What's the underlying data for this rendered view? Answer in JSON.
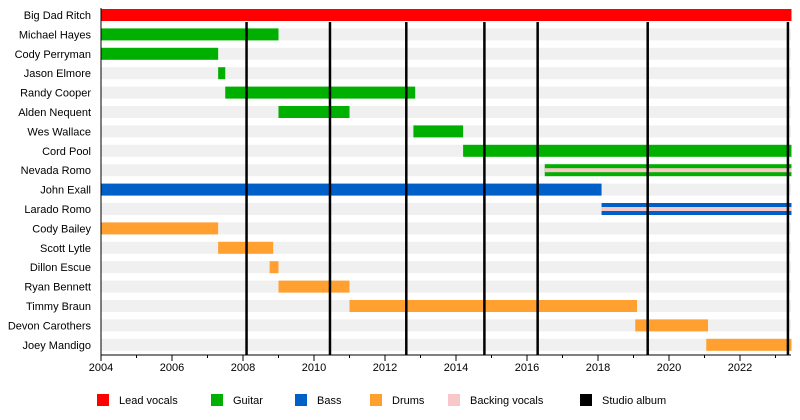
{
  "chart_data": {
    "type": "timeline",
    "title": "",
    "xlim": [
      2004,
      2023.45
    ],
    "x_ticks": [
      2004,
      2006,
      2008,
      2010,
      2012,
      2014,
      2016,
      2018,
      2020,
      2022
    ],
    "roles": [
      {
        "key": "lead",
        "label": "Lead vocals",
        "color": "#ff0000"
      },
      {
        "key": "guitar",
        "label": "Guitar",
        "color": "#00b000"
      },
      {
        "key": "bass",
        "label": "Bass",
        "color": "#0060c8"
      },
      {
        "key": "drums",
        "label": "Drums",
        "color": "#ffa030"
      },
      {
        "key": "backing",
        "label": "Backing vocals",
        "color": "#f8c8c8"
      },
      {
        "key": "album",
        "label": "Studio album",
        "color": "#000000"
      }
    ],
    "albums": [
      2008.1,
      2010.45,
      2012.6,
      2014.8,
      2016.3,
      2019.4,
      2023.35
    ],
    "members": [
      {
        "name": "Big Dad Ritch",
        "bars": [
          {
            "role": "lead",
            "start": 2004,
            "end": 2023.45
          }
        ]
      },
      {
        "name": "Michael Hayes",
        "bars": [
          {
            "role": "guitar",
            "start": 2004,
            "end": 2009.0
          }
        ]
      },
      {
        "name": "Cody Perryman",
        "bars": [
          {
            "role": "guitar",
            "start": 2004,
            "end": 2007.3
          }
        ]
      },
      {
        "name": "Jason Elmore",
        "bars": [
          {
            "role": "guitar",
            "start": 2007.3,
            "end": 2007.5
          }
        ]
      },
      {
        "name": "Randy Cooper",
        "bars": [
          {
            "role": "guitar",
            "start": 2007.5,
            "end": 2012.85
          }
        ]
      },
      {
        "name": "Alden Nequent",
        "bars": [
          {
            "role": "guitar",
            "start": 2009.0,
            "end": 2011.0
          }
        ]
      },
      {
        "name": "Wes Wallace",
        "bars": [
          {
            "role": "guitar",
            "start": 2012.8,
            "end": 2014.2
          }
        ]
      },
      {
        "name": "Cord Pool",
        "bars": [
          {
            "role": "guitar",
            "start": 2014.2,
            "end": 2023.45
          }
        ]
      },
      {
        "name": "Nevada Romo",
        "bars": [
          {
            "role": "guitar",
            "start": 2016.5,
            "end": 2023.45,
            "secondary": "backing"
          }
        ]
      },
      {
        "name": "John Exall",
        "bars": [
          {
            "role": "bass",
            "start": 2004,
            "end": 2018.1
          }
        ]
      },
      {
        "name": "Larado Romo",
        "bars": [
          {
            "role": "bass",
            "start": 2018.1,
            "end": 2023.45,
            "secondary": "backing"
          }
        ]
      },
      {
        "name": "Cody Bailey",
        "bars": [
          {
            "role": "drums",
            "start": 2004,
            "end": 2007.3
          }
        ]
      },
      {
        "name": "Scott Lytle",
        "bars": [
          {
            "role": "drums",
            "start": 2007.3,
            "end": 2008.85
          }
        ]
      },
      {
        "name": "Dillon Escue",
        "bars": [
          {
            "role": "drums",
            "start": 2008.75,
            "end": 2009.0
          }
        ]
      },
      {
        "name": "Ryan Bennett",
        "bars": [
          {
            "role": "drums",
            "start": 2009.0,
            "end": 2011.0
          }
        ]
      },
      {
        "name": "Timmy Braun",
        "bars": [
          {
            "role": "drums",
            "start": 2011.0,
            "end": 2019.1
          }
        ]
      },
      {
        "name": "Devon Carothers",
        "bars": [
          {
            "role": "drums",
            "start": 2019.05,
            "end": 2021.1
          }
        ]
      },
      {
        "name": "Joey Mandigo",
        "bars": [
          {
            "role": "drums",
            "start": 2021.05,
            "end": 2023.45
          }
        ]
      }
    ]
  }
}
